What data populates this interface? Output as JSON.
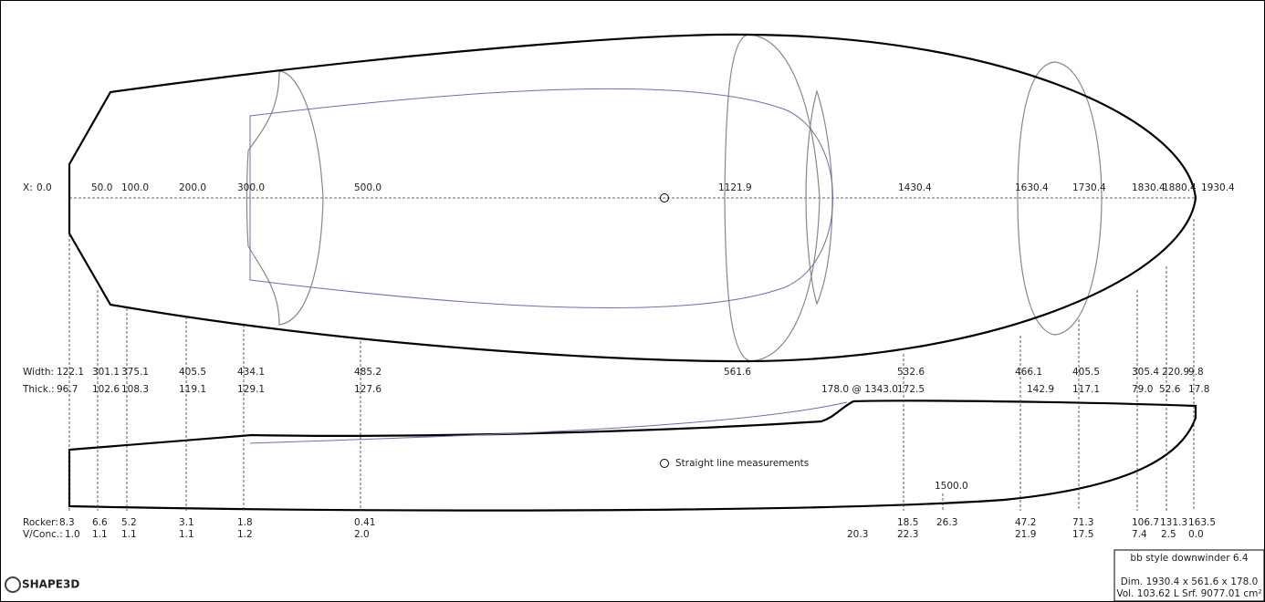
{
  "stations": {
    "label": "X:",
    "values": [
      "0.0",
      "50.0",
      "100.0",
      "200.0",
      "300.0",
      "500.0",
      "1121.9",
      "1430.4",
      "1630.4",
      "1730.4",
      "1830.4",
      "1880.4",
      "1930.4"
    ]
  },
  "width": {
    "label": "Width:",
    "values": [
      "122.1",
      "301.1",
      "375.1",
      "405.5",
      "434.1",
      "485.2",
      "561.6",
      "532.6",
      "466.1",
      "405.5",
      "305.4",
      "220.9",
      "9.8"
    ]
  },
  "thickness": {
    "label": "Thick.:",
    "values": [
      "96.7",
      "102.6",
      "108.3",
      "119.1",
      "129.1",
      "127.6",
      "178.0 @ 1343.0",
      "172.5",
      "142.9",
      "117.1",
      "79.0",
      "52.6",
      "17.8"
    ]
  },
  "rocker": {
    "label": "Rocker:",
    "values": [
      "8.3",
      "6.6",
      "5.2",
      "3.1",
      "1.8",
      "0.41",
      "18.5",
      "26.3",
      "47.2",
      "71.3",
      "106.7",
      "131.3",
      "163.5"
    ]
  },
  "vconc": {
    "label": "V/Conc.:",
    "values": [
      "1.0",
      "1.1",
      "1.1",
      "1.1",
      "1.2",
      "2.0",
      "20.3",
      "22.3",
      "21.9",
      "17.5",
      "7.4",
      "2.5",
      "0.0"
    ]
  },
  "annotations": {
    "straight_line": "Straight line measurements",
    "rocker_station": "1500.0"
  },
  "info_box": {
    "title": "bb style downwinder 6.4",
    "dimensions": "Dim. 1930.4 x 561.6 x 178.0",
    "volume_surface": "Vol. 103.62 L  Srf. 9077.01 cm²"
  },
  "logo": "SHAPE3D"
}
